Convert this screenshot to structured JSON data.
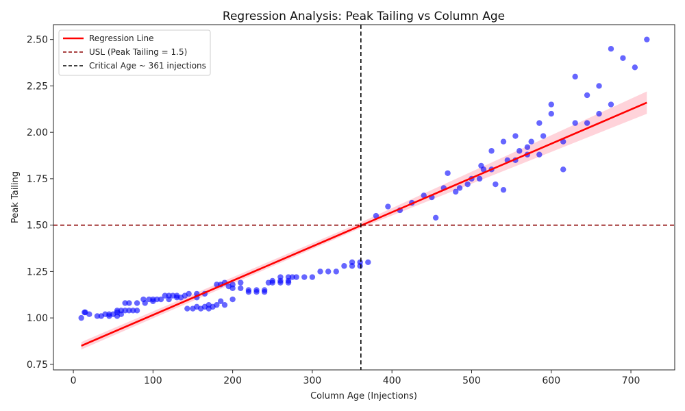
{
  "chart_data": {
    "type": "scatter",
    "title": "Regression Analysis: Peak Tailing vs Column Age",
    "xlabel": "Column Age (Injections)",
    "ylabel": "Peak Tailing",
    "xlim": [
      -25,
      755
    ],
    "ylim": [
      0.72,
      2.58
    ],
    "x_ticks": [
      0,
      100,
      200,
      300,
      400,
      500,
      600,
      700
    ],
    "y_ticks": [
      0.75,
      1.0,
      1.25,
      1.5,
      1.75,
      2.0,
      2.25,
      2.5
    ],
    "y_tick_labels": [
      "0.75",
      "1.00",
      "1.25",
      "1.50",
      "1.75",
      "2.00",
      "2.25",
      "2.50"
    ],
    "grid": false,
    "legend_position": "top-left",
    "legend": [
      {
        "label": "Regression Line",
        "color": "#ff0000",
        "style": "solid"
      },
      {
        "label": "USL (Peak Tailing = 1.5)",
        "color": "#8b0000",
        "style": "dashed"
      },
      {
        "label": "Critical Age ~ 361 injections",
        "color": "#000000",
        "style": "dashed"
      }
    ],
    "colors": {
      "points": "#0000ff",
      "regression": "#ff0000",
      "band": "#ffb6c1",
      "usl": "#8b0000",
      "critical": "#000000"
    },
    "regression": {
      "x_start": 10,
      "y_start": 0.85,
      "x_end": 720,
      "y_end": 2.16
    },
    "confidence_band": {
      "x": [
        10,
        361,
        720
      ],
      "lower": [
        0.83,
        1.485,
        2.1
      ],
      "upper": [
        0.87,
        1.515,
        2.22
      ]
    },
    "usl": 1.5,
    "critical_age": 361,
    "points": [
      [
        10,
        1.0
      ],
      [
        14,
        1.03
      ],
      [
        15,
        1.03
      ],
      [
        20,
        1.02
      ],
      [
        30,
        1.01
      ],
      [
        35,
        1.01
      ],
      [
        40,
        1.02
      ],
      [
        45,
        1.01
      ],
      [
        45,
        1.02
      ],
      [
        50,
        1.02
      ],
      [
        55,
        1.01
      ],
      [
        55,
        1.03
      ],
      [
        55,
        1.04
      ],
      [
        60,
        1.02
      ],
      [
        60,
        1.04
      ],
      [
        65,
        1.04
      ],
      [
        65,
        1.08
      ],
      [
        70,
        1.04
      ],
      [
        70,
        1.08
      ],
      [
        75,
        1.04
      ],
      [
        80,
        1.08
      ],
      [
        80,
        1.04
      ],
      [
        88,
        1.1
      ],
      [
        90,
        1.08
      ],
      [
        95,
        1.1
      ],
      [
        100,
        1.09
      ],
      [
        100,
        1.1
      ],
      [
        105,
        1.1
      ],
      [
        110,
        1.1
      ],
      [
        115,
        1.12
      ],
      [
        120,
        1.12
      ],
      [
        120,
        1.1
      ],
      [
        125,
        1.12
      ],
      [
        130,
        1.12
      ],
      [
        130,
        1.11
      ],
      [
        135,
        1.11
      ],
      [
        140,
        1.12
      ],
      [
        145,
        1.13
      ],
      [
        155,
        1.13
      ],
      [
        155,
        1.11
      ],
      [
        165,
        1.13
      ],
      [
        143,
        1.05
      ],
      [
        150,
        1.05
      ],
      [
        155,
        1.06
      ],
      [
        160,
        1.05
      ],
      [
        165,
        1.06
      ],
      [
        170,
        1.07
      ],
      [
        170,
        1.05
      ],
      [
        175,
        1.06
      ],
      [
        180,
        1.07
      ],
      [
        185,
        1.09
      ],
      [
        190,
        1.07
      ],
      [
        200,
        1.1
      ],
      [
        180,
        1.18
      ],
      [
        185,
        1.18
      ],
      [
        190,
        1.19
      ],
      [
        195,
        1.17
      ],
      [
        200,
        1.18
      ],
      [
        200,
        1.16
      ],
      [
        210,
        1.19
      ],
      [
        210,
        1.16
      ],
      [
        220,
        1.15
      ],
      [
        220,
        1.14
      ],
      [
        230,
        1.15
      ],
      [
        230,
        1.14
      ],
      [
        240,
        1.15
      ],
      [
        240,
        1.14
      ],
      [
        245,
        1.19
      ],
      [
        250,
        1.2
      ],
      [
        250,
        1.19
      ],
      [
        260,
        1.22
      ],
      [
        260,
        1.2
      ],
      [
        260,
        1.19
      ],
      [
        270,
        1.22
      ],
      [
        270,
        1.2
      ],
      [
        270,
        1.19
      ],
      [
        275,
        1.22
      ],
      [
        280,
        1.22
      ],
      [
        290,
        1.22
      ],
      [
        300,
        1.22
      ],
      [
        310,
        1.25
      ],
      [
        320,
        1.25
      ],
      [
        330,
        1.25
      ],
      [
        340,
        1.28
      ],
      [
        350,
        1.3
      ],
      [
        350,
        1.28
      ],
      [
        360,
        1.3
      ],
      [
        360,
        1.28
      ],
      [
        370,
        1.3
      ],
      [
        380,
        1.55
      ],
      [
        395,
        1.6
      ],
      [
        410,
        1.58
      ],
      [
        425,
        1.62
      ],
      [
        440,
        1.66
      ],
      [
        450,
        1.65
      ],
      [
        455,
        1.54
      ],
      [
        465,
        1.7
      ],
      [
        470,
        1.78
      ],
      [
        480,
        1.68
      ],
      [
        485,
        1.7
      ],
      [
        495,
        1.72
      ],
      [
        500,
        1.75
      ],
      [
        510,
        1.75
      ],
      [
        512,
        1.82
      ],
      [
        515,
        1.8
      ],
      [
        525,
        1.8
      ],
      [
        525,
        1.9
      ],
      [
        530,
        1.72
      ],
      [
        540,
        1.69
      ],
      [
        540,
        1.95
      ],
      [
        545,
        1.85
      ],
      [
        555,
        1.85
      ],
      [
        555,
        1.98
      ],
      [
        560,
        1.9
      ],
      [
        570,
        1.88
      ],
      [
        570,
        1.92
      ],
      [
        575,
        1.95
      ],
      [
        585,
        1.88
      ],
      [
        585,
        2.05
      ],
      [
        590,
        1.98
      ],
      [
        600,
        2.1
      ],
      [
        600,
        2.15
      ],
      [
        615,
        1.95
      ],
      [
        615,
        1.8
      ],
      [
        630,
        2.05
      ],
      [
        630,
        2.3
      ],
      [
        645,
        2.05
      ],
      [
        645,
        2.2
      ],
      [
        660,
        2.1
      ],
      [
        660,
        2.25
      ],
      [
        675,
        2.15
      ],
      [
        675,
        2.45
      ],
      [
        690,
        2.4
      ],
      [
        705,
        2.35
      ],
      [
        720,
        2.5
      ]
    ]
  }
}
